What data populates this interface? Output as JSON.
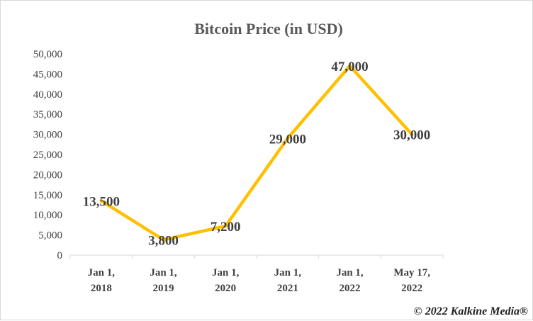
{
  "chart_data": {
    "type": "line",
    "title": "Bitcoin Price (in USD)",
    "xlabel": "",
    "ylabel": "",
    "categories": [
      [
        "Jan 1,",
        "2018"
      ],
      [
        "Jan 1,",
        "2019"
      ],
      [
        "Jan 1,",
        "2020"
      ],
      [
        "Jan 1,",
        "2021"
      ],
      [
        "Jan 1,",
        "2022"
      ],
      [
        "May 17,",
        "2022"
      ]
    ],
    "series": [
      {
        "values": [
          13500,
          3800,
          7200,
          29000,
          47000,
          30000
        ],
        "data_labels": [
          "13,500",
          "3,800",
          "7,200",
          "29,000",
          "47,000",
          "30,000"
        ],
        "color": "#ffc000"
      }
    ],
    "ylim": [
      0,
      50000
    ],
    "yticks": [
      0,
      5000,
      10000,
      15000,
      20000,
      25000,
      30000,
      35000,
      40000,
      45000,
      50000
    ],
    "ytick_labels": [
      "0",
      "5,000",
      "10,000",
      "15,000",
      "20,000",
      "25,000",
      "30,000",
      "35,000",
      "40,000",
      "45,000",
      "50,000"
    ],
    "grid": false,
    "legend": "none"
  },
  "footer": {
    "copyright": "© 2022 Kalkine Media®"
  }
}
